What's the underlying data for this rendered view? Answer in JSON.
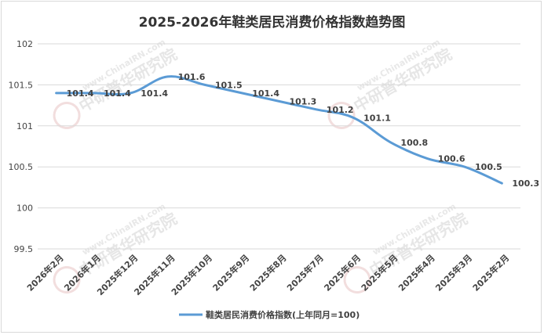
{
  "chart_data": {
    "type": "line",
    "title": "2025-2026年鞋类居民消费价格指数趋势图",
    "categories": [
      "2026年2月",
      "2026年1月",
      "2025年12月",
      "2025年11月",
      "2025年10月",
      "2025年9月",
      "2025年8月",
      "2025年7月",
      "2025年6月",
      "2025年5月",
      "2025年4月",
      "2025年3月",
      "2025年2月"
    ],
    "series": [
      {
        "name": "鞋类居民消费价格指数(上年同月=100)",
        "values": [
          101.4,
          101.4,
          101.4,
          101.6,
          101.5,
          101.4,
          101.3,
          101.2,
          101.1,
          100.8,
          100.6,
          100.5,
          100.3
        ],
        "labels": [
          "101.4",
          "101.4",
          "101.4",
          "101.6",
          "101.5",
          "101.4",
          "101.3",
          "101.2",
          "101.1",
          "100.8",
          "100.6",
          "100.5",
          "100.3"
        ]
      }
    ],
    "ylim": [
      99.5,
      102
    ],
    "yticks": [
      "99.5",
      "100",
      "100.5",
      "101",
      "101.5",
      "102"
    ],
    "grid": true,
    "legend_position": "bottom",
    "line_color": "#5b9bd5"
  },
  "watermark": {
    "text": "中研普华研究院",
    "url": "www.ChinaIRN.com",
    "logo": "CIRN"
  }
}
